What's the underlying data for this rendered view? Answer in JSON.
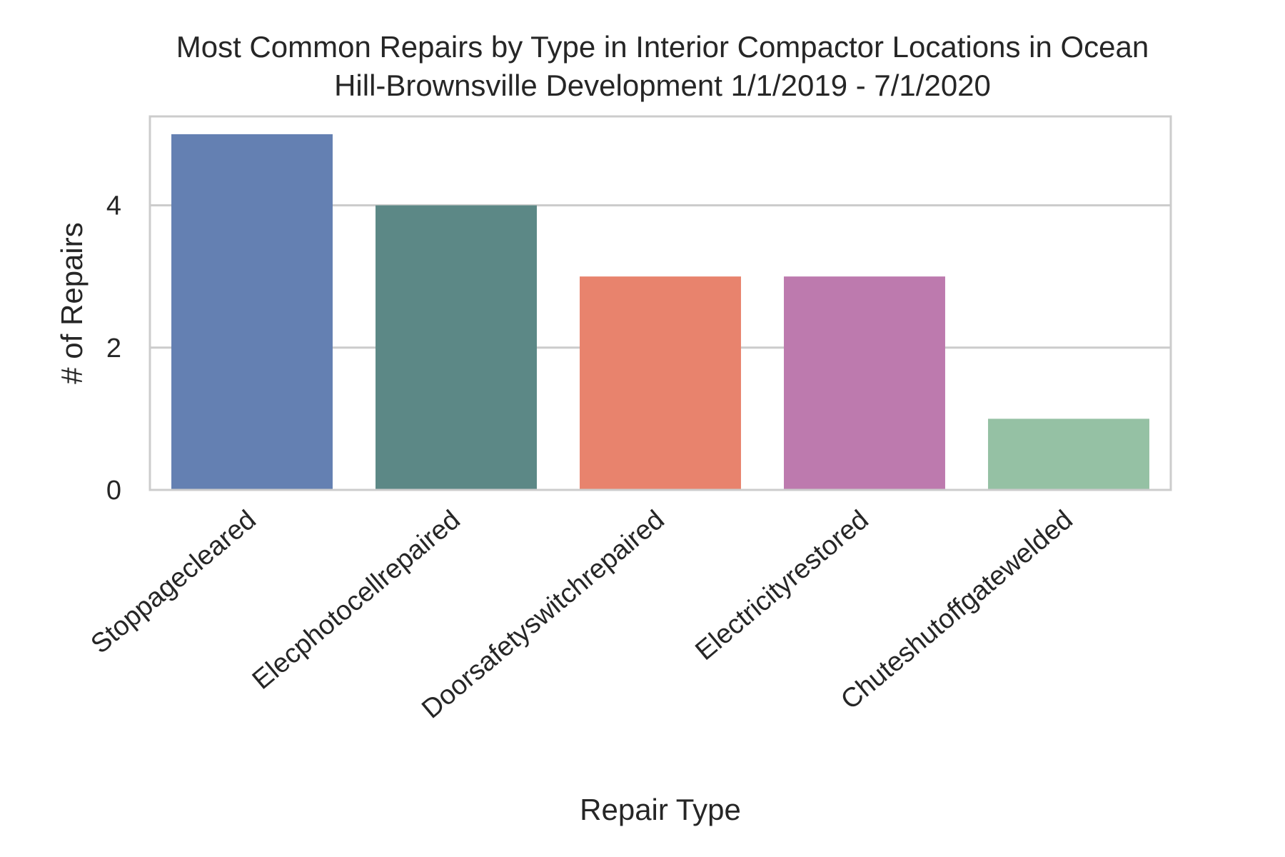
{
  "chart_data": {
    "type": "bar",
    "title": [
      "Most Common Repairs by Type in Interior Compactor Locations in Ocean",
      "Hill-Brownsville Development 1/1/2019 - 7/1/2020"
    ],
    "xlabel": "Repair Type",
    "ylabel": "# of Repairs",
    "categories": [
      "Stoppagecleared",
      "Elecphotocellrepaired",
      "Doorsafetyswitchrepaired",
      "Electricityrestored",
      "Chuteshutoffgatewelded"
    ],
    "values": [
      5,
      4,
      3,
      3,
      1
    ],
    "colors": [
      "#6480b2",
      "#5c8886",
      "#e8836d",
      "#bd7aae",
      "#95c1a4"
    ],
    "ylim": [
      0,
      5.25
    ],
    "yticks": [
      0,
      2,
      4
    ],
    "grid": "horizontal"
  }
}
